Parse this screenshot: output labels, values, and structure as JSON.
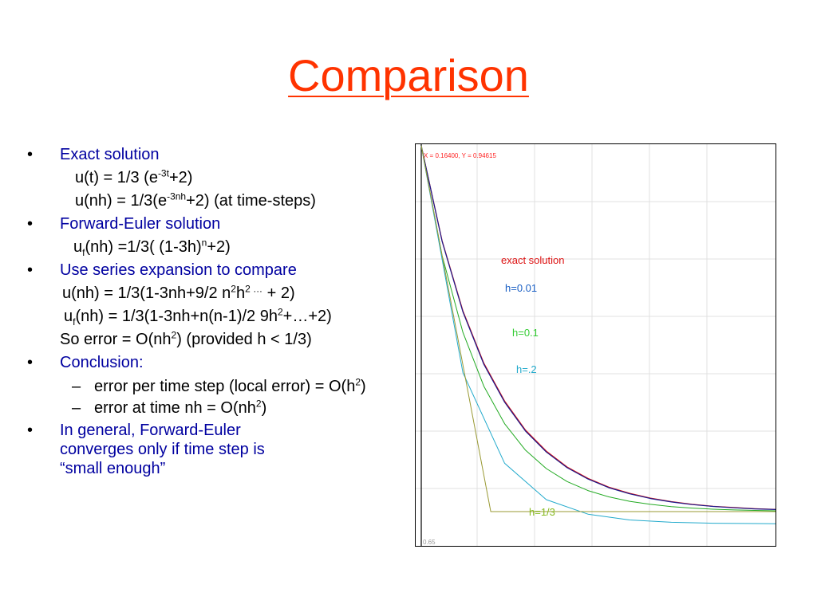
{
  "slide": {
    "title": "Comparison",
    "bullets": {
      "b1": "Exact solution",
      "b1_l1_pre": "u(t) = 1/3 (e",
      "b1_l1_sup": "-3t",
      "b1_l1_post": "+2)",
      "b1_l2_pre": "u(nh) = 1/3(e",
      "b1_l2_sup": "-3nh",
      "b1_l2_post": "+2)  (at time-steps)",
      "b2": "Forward-Euler solution",
      "b2_l1_a": "u",
      "b2_l1_sub": "f",
      "b2_l1_b": "(nh) =1/3( (1-3h)",
      "b2_l1_sup": "n",
      "b2_l1_c": "+2)",
      "b3": "Use series expansion to compare",
      "b3_l1_a": "u(nh) = 1/3(1-3nh+9/2 n",
      "b3_l1_sup1": "2",
      "b3_l1_b": "h",
      "b3_l1_sup2": "2 …",
      "b3_l1_c": " + 2)",
      "b3_l2_a": "u",
      "b3_l2_sub": "f",
      "b3_l2_b": "(nh) = 1/3(1-3nh+n(n-1)/2 9h",
      "b3_l2_sup": "2",
      "b3_l2_c": "+…+2)",
      "b3_l3_a": "So error = O(nh",
      "b3_l3_sup": "2",
      "b3_l3_b": ") (provided h < 1/3)",
      "b4": "Conclusion:",
      "b4_d1_a": "error per time step (local error) = O(h",
      "b4_d1_sup": "2",
      "b4_d1_b": ")",
      "b4_d2_a": "error at time nh = O(nh",
      "b4_d2_sup": "2",
      "b4_d2_b": ")",
      "b5_l1": "In general, Forward-Euler",
      "b5_l2": "converges only if time step is",
      "b5_l3": "“small enough”",
      "bullet_symbol": "•",
      "dash_symbol": "–"
    }
  },
  "chart_data": {
    "type": "line",
    "cursor_readout": "X = 0.16400, Y = 0.94615",
    "y_tick_label": "0.65",
    "grid": true,
    "xlim": [
      0,
      1.7
    ],
    "ylim": [
      0.65,
      1.0
    ],
    "series": [
      {
        "name": "exact solution",
        "color": "#dd1111",
        "label_color": "#dd1111",
        "x": [
          0,
          0.1,
          0.2,
          0.3,
          0.4,
          0.5,
          0.6,
          0.7,
          0.8,
          0.9,
          1.0,
          1.1,
          1.2,
          1.3,
          1.4,
          1.5,
          1.6,
          1.7
        ],
        "y": [
          1.0,
          0.9136,
          0.8496,
          0.802,
          0.7674,
          0.741,
          0.7218,
          0.7074,
          0.697,
          0.689,
          0.6833,
          0.679,
          0.6758,
          0.6734,
          0.6716,
          0.6704,
          0.6694,
          0.6687
        ]
      },
      {
        "name": "h=0.01",
        "color": "#1a1a8c",
        "label_color": "#1a5fc4",
        "x": [
          0,
          0.1,
          0.2,
          0.3,
          0.4,
          0.5,
          0.6,
          0.7,
          0.8,
          0.9,
          1.0,
          1.1,
          1.2,
          1.3,
          1.4,
          1.5,
          1.6,
          1.7
        ],
        "y": [
          1.0,
          0.913,
          0.8487,
          0.801,
          0.7664,
          0.7401,
          0.721,
          0.7067,
          0.6964,
          0.6885,
          0.6829,
          0.6786,
          0.6755,
          0.6731,
          0.6714,
          0.6702,
          0.6692,
          0.6686
        ]
      },
      {
        "name": "h=0.1",
        "color": "#22aa22",
        "label_color": "#33cc33",
        "x": [
          0,
          0.1,
          0.2,
          0.3,
          0.4,
          0.5,
          0.6,
          0.7,
          0.8,
          0.9,
          1.0,
          1.1,
          1.2,
          1.3,
          1.4,
          1.5,
          1.6,
          1.7
        ],
        "y": [
          1.0,
          0.9,
          0.83,
          0.781,
          0.7467,
          0.7227,
          0.7059,
          0.6941,
          0.6859,
          0.6801,
          0.6761,
          0.6733,
          0.6713,
          0.6699,
          0.6689,
          0.6682,
          0.6678,
          0.6674
        ]
      },
      {
        "name": "h=.2",
        "color": "#22aacc",
        "label_color": "#22aacc",
        "x": [
          0,
          0.2,
          0.4,
          0.6,
          0.8,
          1.0,
          1.2,
          1.4,
          1.6,
          1.7
        ],
        "y": [
          1.0,
          0.7933,
          0.7107,
          0.6776,
          0.6644,
          0.6591,
          0.657,
          0.6561,
          0.6558,
          0.6557
        ]
      },
      {
        "name": "h=1/3",
        "color": "#999933",
        "label_color": "#88bb22",
        "x": [
          0,
          0.3333,
          0.6667,
          1.0,
          1.3333,
          1.6667,
          1.7
        ],
        "y": [
          1.0,
          0.6667,
          0.6667,
          0.6667,
          0.6667,
          0.6667,
          0.6667
        ]
      }
    ]
  }
}
